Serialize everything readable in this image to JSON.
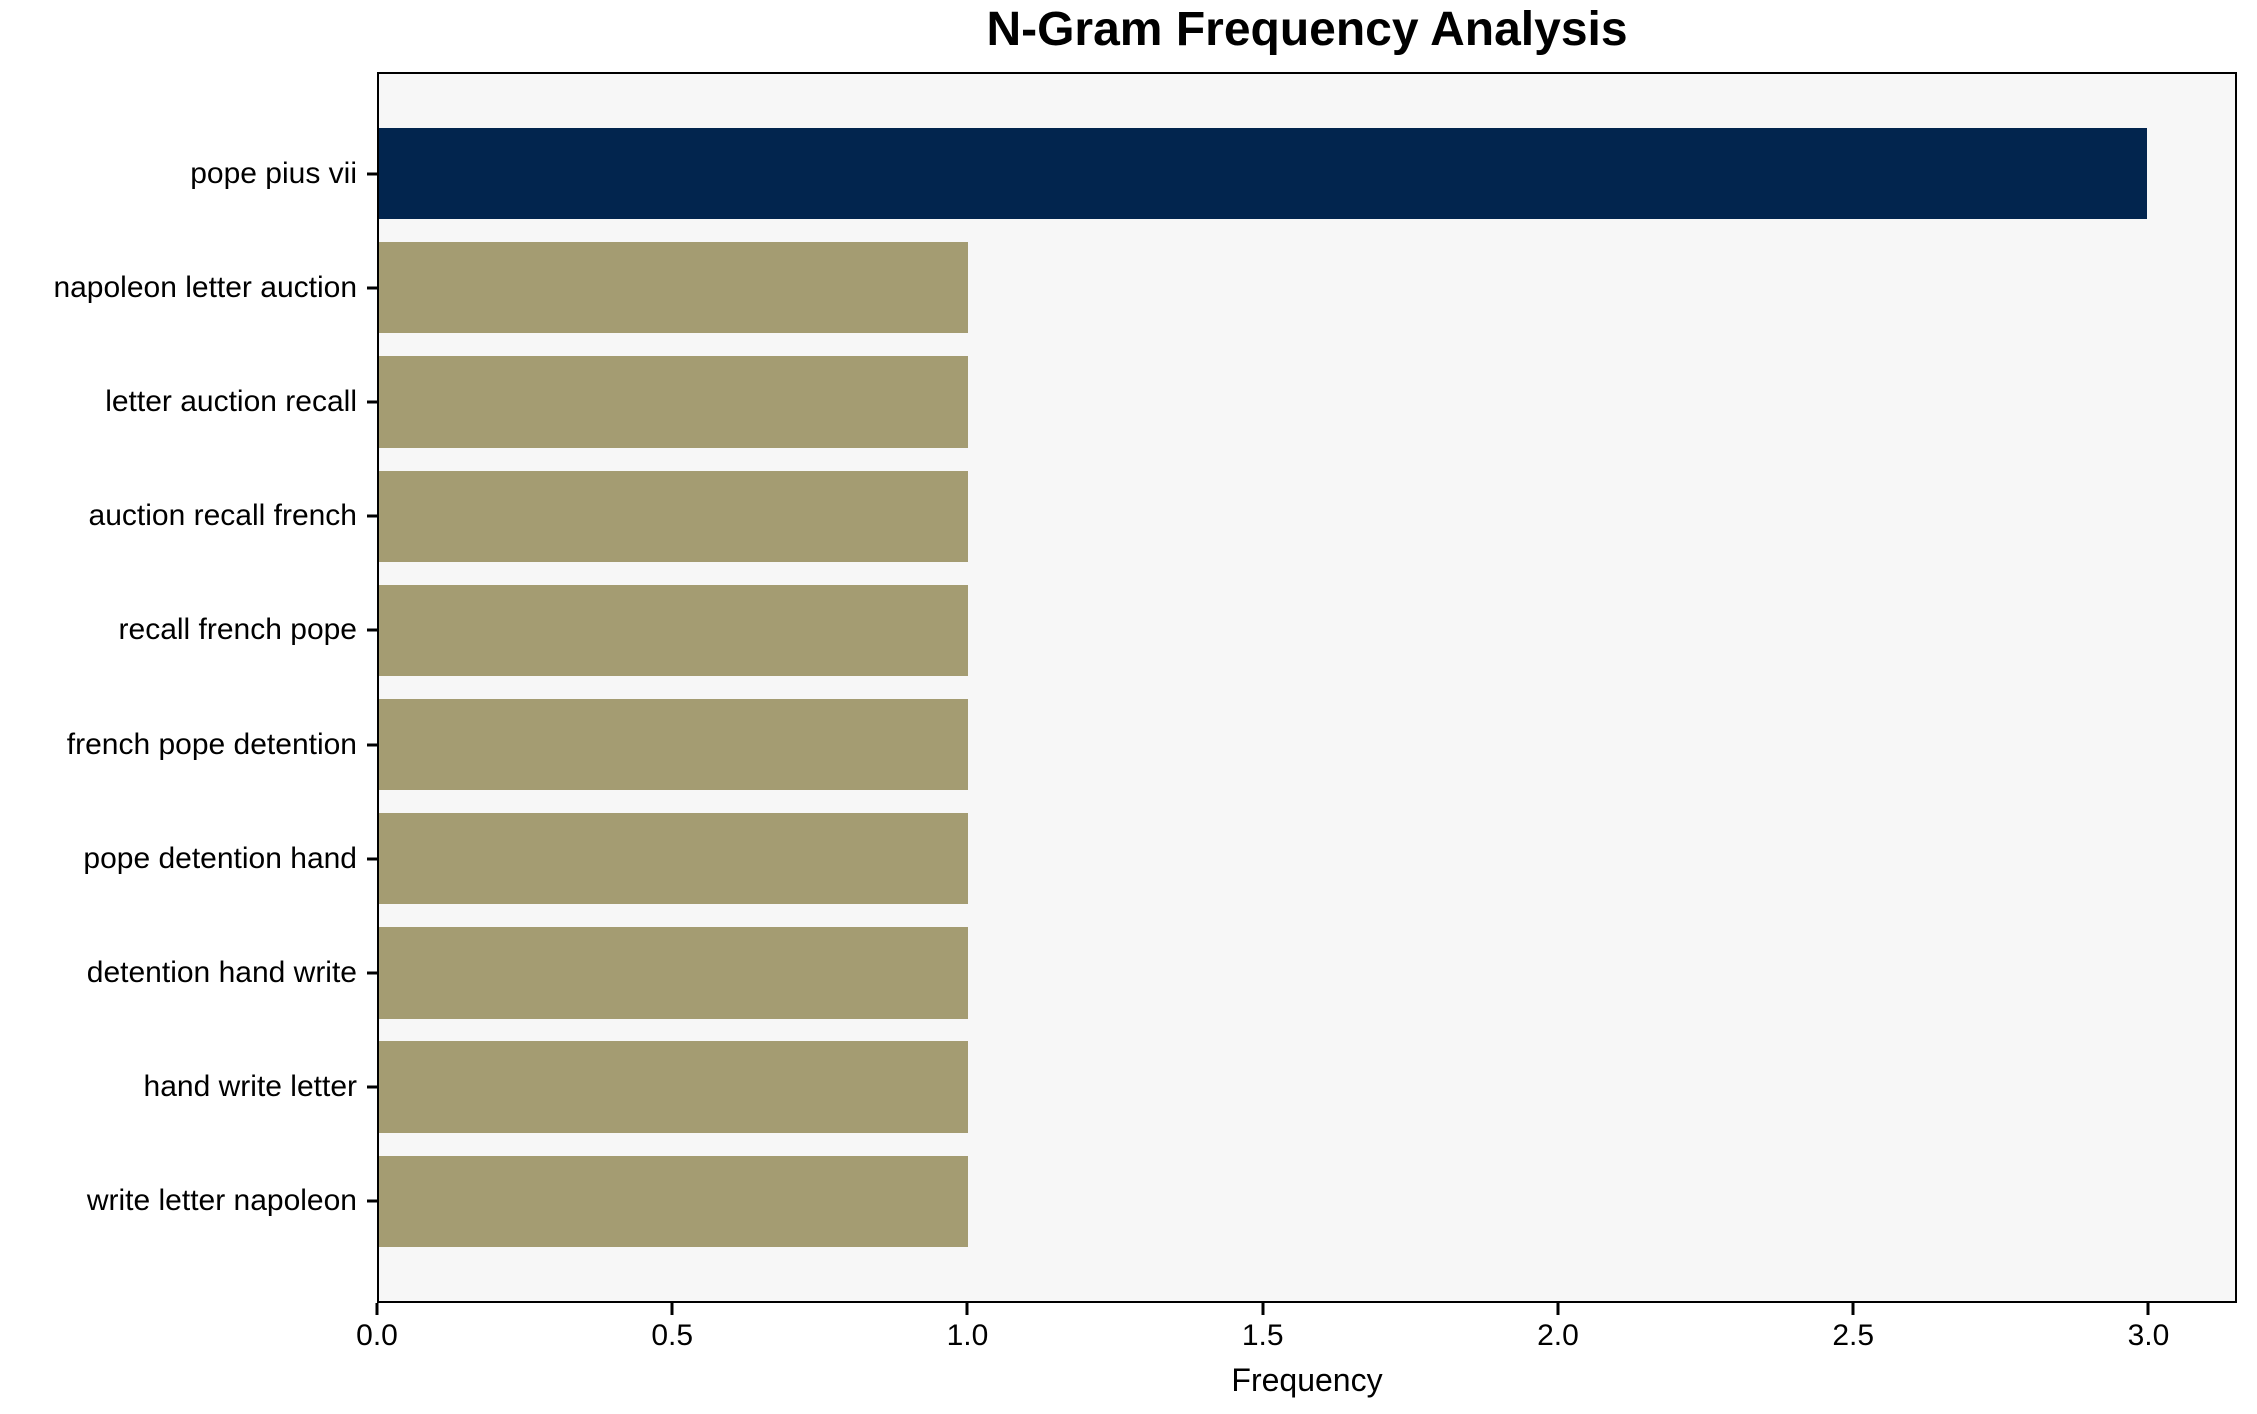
{
  "chart_data": {
    "type": "bar",
    "orientation": "horizontal",
    "title": "N-Gram Frequency Analysis",
    "xlabel": "Frequency",
    "ylabel": "",
    "categories": [
      "pope pius vii",
      "napoleon letter auction",
      "letter auction recall",
      "auction recall french",
      "recall french pope",
      "french pope detention",
      "pope detention hand",
      "detention hand write",
      "hand write letter",
      "write letter napoleon"
    ],
    "values": [
      3,
      1,
      1,
      1,
      1,
      1,
      1,
      1,
      1,
      1
    ],
    "bar_colors": [
      "#02254e",
      "#a49c72",
      "#a49c72",
      "#a49c72",
      "#a49c72",
      "#a49c72",
      "#a49c72",
      "#a49c72",
      "#a49c72",
      "#a49c72"
    ],
    "xlim": [
      0,
      3.15
    ],
    "xticks": [
      0,
      0.5,
      1,
      1.5,
      2,
      2.5,
      3
    ],
    "xtick_labels": [
      "0.0",
      "0.5",
      "1.0",
      "1.5",
      "2.0",
      "2.5",
      "3.0"
    ],
    "grid": false,
    "legend": null,
    "colors": {
      "highlight_bar": "#02254e",
      "default_bar": "#a49c72",
      "plot_background": "#f7f7f7",
      "figure_background": "#ffffff",
      "spine": "#000000",
      "text": "#000000"
    }
  }
}
